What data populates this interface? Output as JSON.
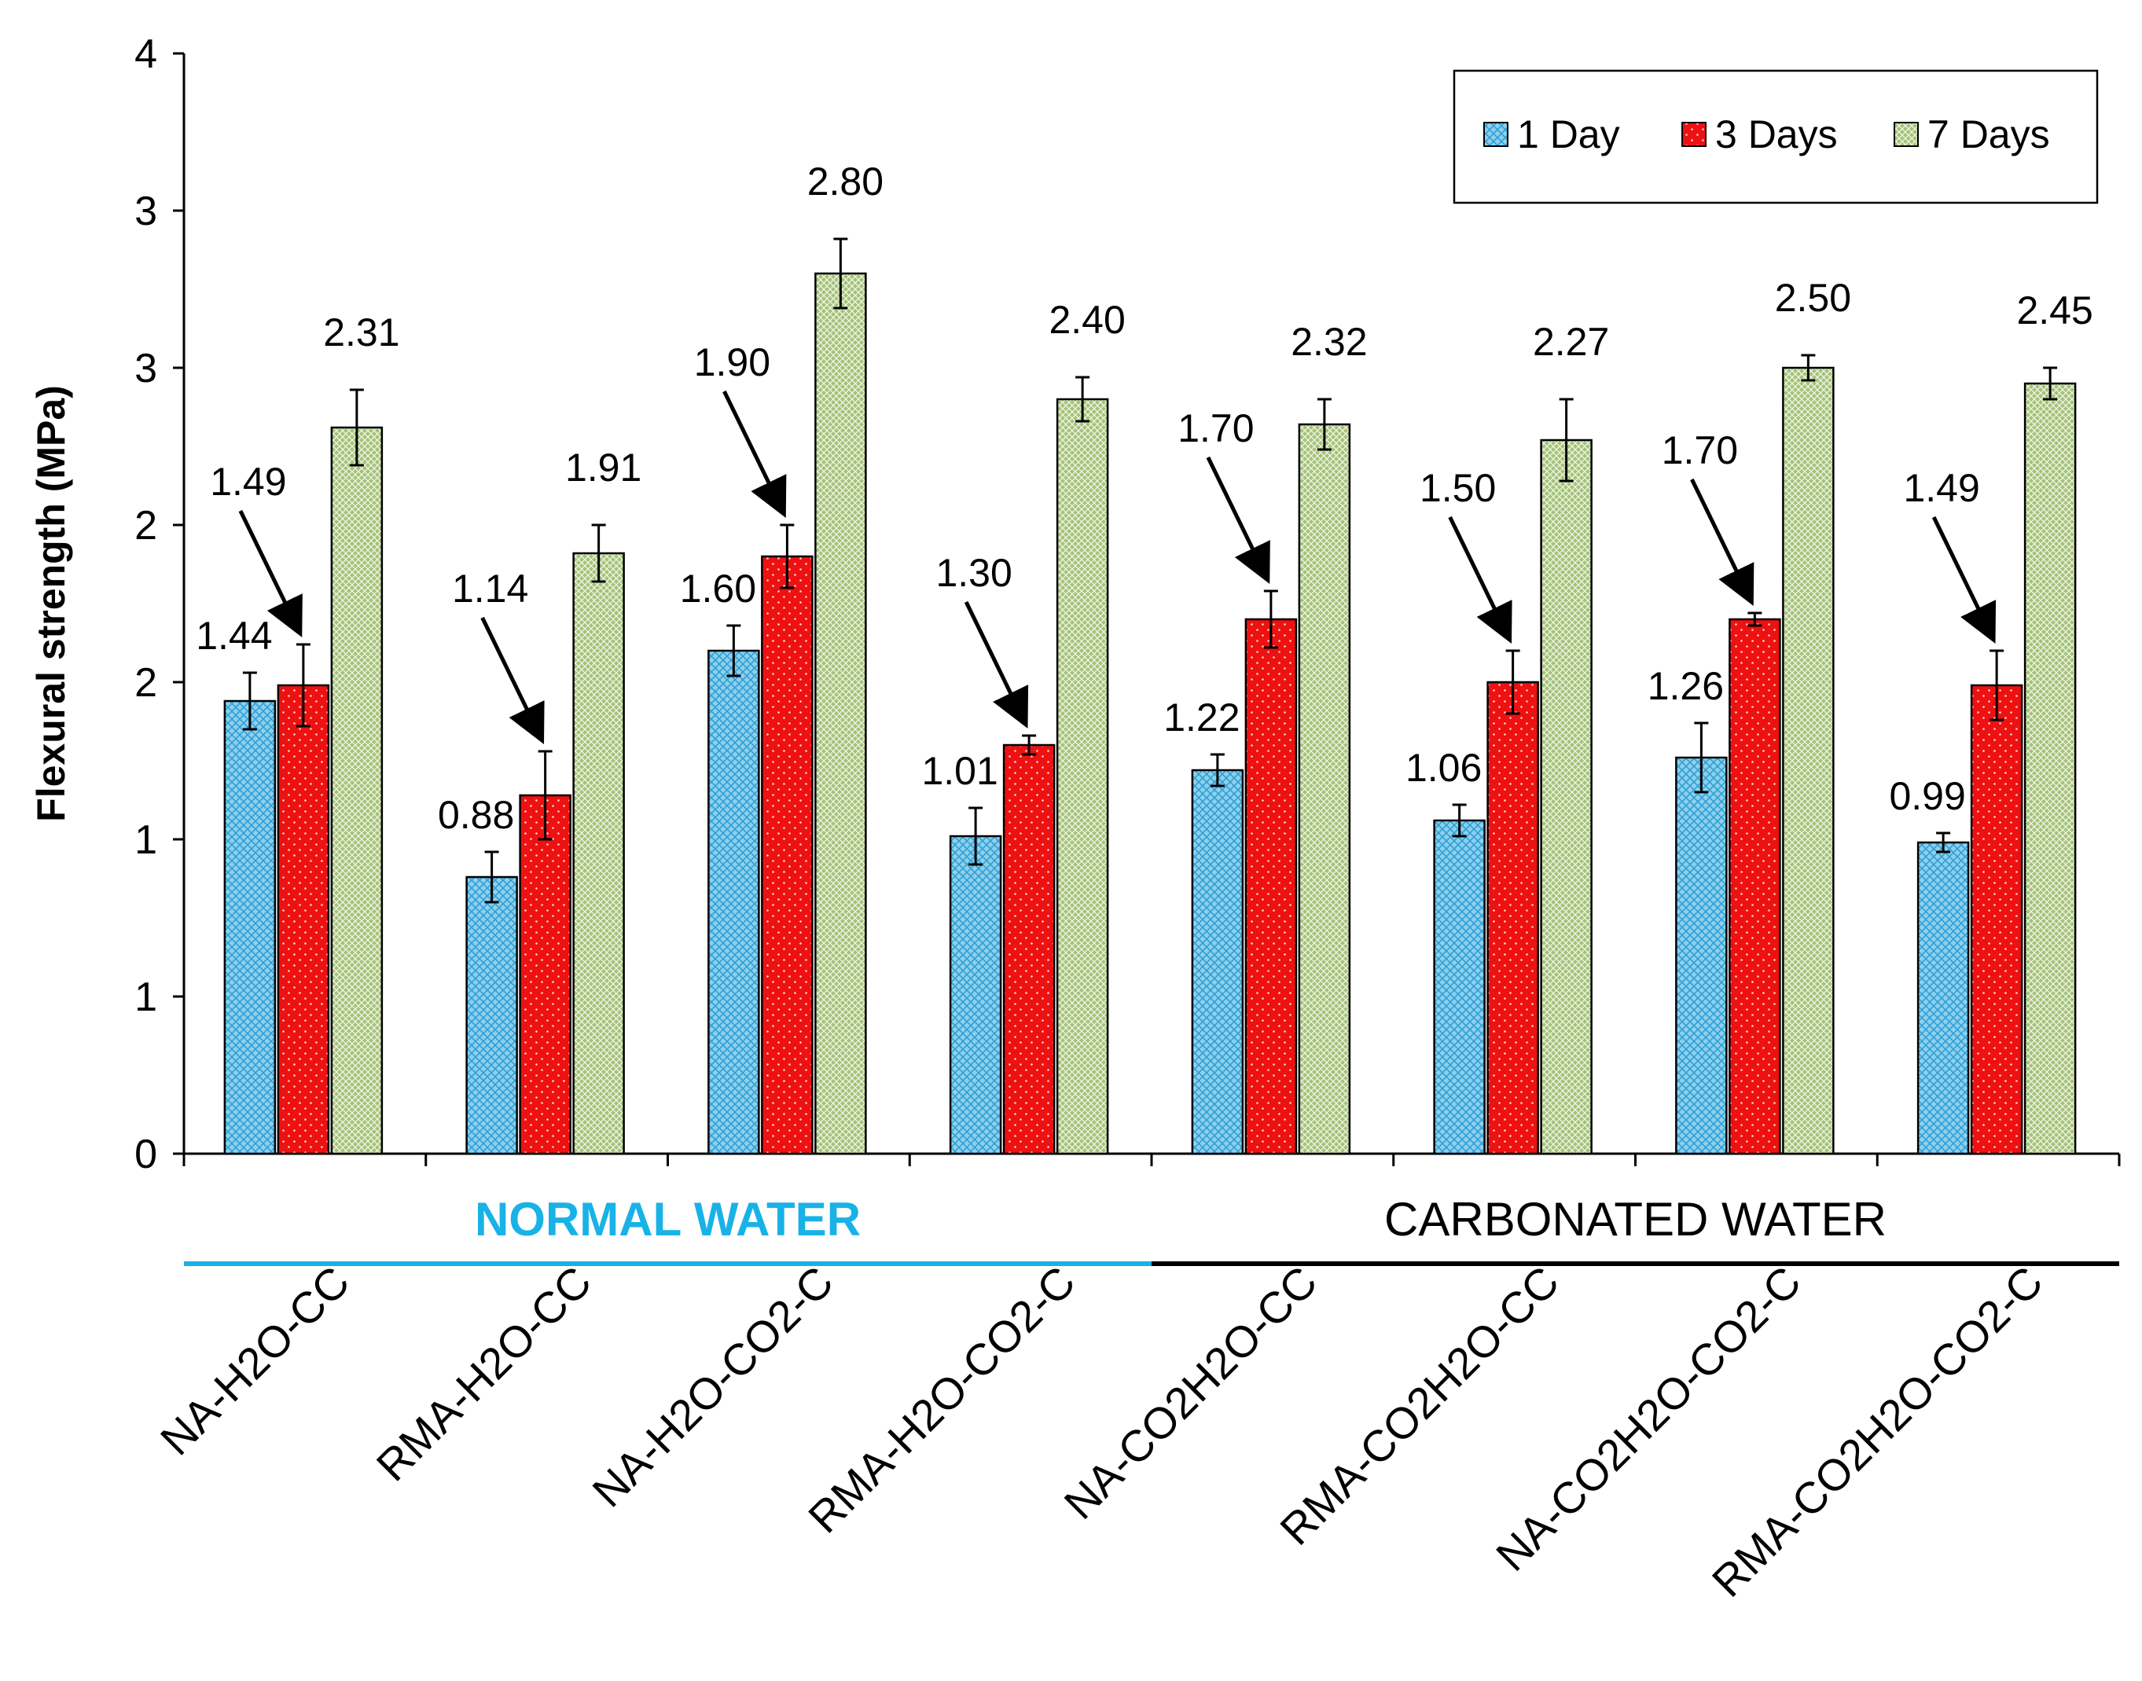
{
  "chart_data": {
    "type": "bar",
    "ylabel": "Flexural strength (MPa)",
    "xlabel": "",
    "y_tick_labels": [
      "0",
      "1",
      "1",
      "2",
      "2",
      "3",
      "3",
      "4"
    ],
    "ylim": [
      0,
      3.5
    ],
    "categories": [
      "NA-H2O-CC",
      "RMA-H2O-CC",
      "NA-H2O-CO2-C",
      "RMA-H2O-CO2-C",
      "NA-CO2H2O-CC",
      "RMA-CO2H2O-CC",
      "NA-CO2H2O-CO2-C",
      "RMA-CO2H2O-CO2-C"
    ],
    "groups": [
      {
        "label": "NORMAL WATER",
        "color": "#19b2e6",
        "bold": true,
        "start": 0,
        "end": 3
      },
      {
        "label": "CARBONATED WATER",
        "color": "#000000",
        "bold": false,
        "start": 4,
        "end": 7
      }
    ],
    "series": [
      {
        "name": "1 Day",
        "color": "#8ed0ec",
        "pattern": "crosshatch",
        "values": [
          1.44,
          0.88,
          1.6,
          1.01,
          1.22,
          1.06,
          1.26,
          0.99
        ],
        "errors": [
          0.09,
          0.08,
          0.08,
          0.09,
          0.05,
          0.05,
          0.11,
          0.03
        ],
        "labels": [
          "1.44",
          "0.88",
          "1.60",
          "1.01",
          "1.22",
          "1.06",
          "1.26",
          "0.99"
        ]
      },
      {
        "name": "3 Days",
        "color": "#ee1111",
        "pattern": "dots",
        "values": [
          1.49,
          1.14,
          1.9,
          1.3,
          1.7,
          1.5,
          1.7,
          1.49
        ],
        "errors": [
          0.13,
          0.14,
          0.1,
          0.03,
          0.09,
          0.1,
          0.02,
          0.11
        ],
        "labels": [
          "1.49",
          "1.14",
          "1.90",
          "1.30",
          "1.70",
          "1.50",
          "1.70",
          "1.49"
        ]
      },
      {
        "name": "7 Days",
        "color": "#a4c27a",
        "pattern": "fine-crosshatch",
        "values": [
          2.31,
          1.91,
          2.8,
          2.4,
          2.32,
          2.27,
          2.5,
          2.45
        ],
        "errors": [
          0.12,
          0.09,
          0.11,
          0.07,
          0.08,
          0.13,
          0.04,
          0.05
        ],
        "labels": [
          "2.31",
          "1.91",
          "2.80",
          "2.40",
          "2.32",
          "2.27",
          "2.50",
          "2.45"
        ]
      }
    ],
    "arrows_on_series": "3 Days",
    "legend": {
      "position": "top-right",
      "entries": [
        "1 Day",
        "3 Days",
        "7 Days"
      ]
    }
  }
}
